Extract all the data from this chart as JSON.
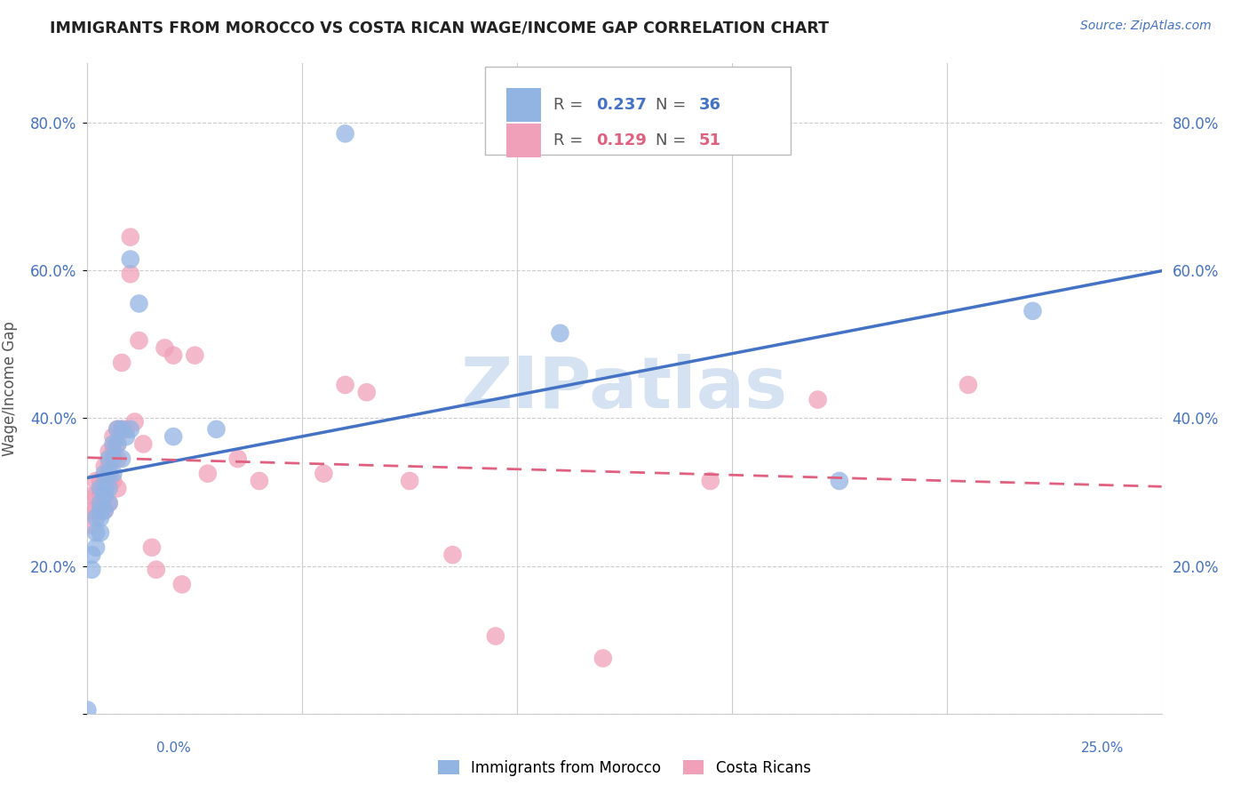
{
  "title": "IMMIGRANTS FROM MOROCCO VS COSTA RICAN WAGE/INCOME GAP CORRELATION CHART",
  "source": "Source: ZipAtlas.com",
  "ylabel": "Wage/Income Gap",
  "legend_blue_r": "0.237",
  "legend_blue_n": "36",
  "legend_pink_r": "0.129",
  "legend_pink_n": "51",
  "blue_scatter_x": [
    0.0,
    0.001,
    0.001,
    0.002,
    0.002,
    0.002,
    0.003,
    0.003,
    0.003,
    0.003,
    0.003,
    0.004,
    0.004,
    0.004,
    0.004,
    0.005,
    0.005,
    0.005,
    0.005,
    0.006,
    0.006,
    0.006,
    0.007,
    0.007,
    0.008,
    0.008,
    0.009,
    0.01,
    0.012,
    0.02,
    0.03,
    0.06,
    0.11,
    0.175,
    0.22,
    0.01
  ],
  "blue_scatter_y": [
    0.005,
    0.215,
    0.195,
    0.265,
    0.245,
    0.225,
    0.305,
    0.285,
    0.275,
    0.265,
    0.245,
    0.325,
    0.305,
    0.295,
    0.275,
    0.345,
    0.325,
    0.305,
    0.285,
    0.365,
    0.345,
    0.325,
    0.385,
    0.365,
    0.385,
    0.345,
    0.375,
    0.385,
    0.555,
    0.375,
    0.385,
    0.785,
    0.515,
    0.315,
    0.545,
    0.615
  ],
  "pink_scatter_x": [
    0.001,
    0.001,
    0.001,
    0.002,
    0.002,
    0.002,
    0.003,
    0.003,
    0.003,
    0.004,
    0.004,
    0.004,
    0.004,
    0.005,
    0.005,
    0.005,
    0.005,
    0.006,
    0.006,
    0.006,
    0.007,
    0.007,
    0.007,
    0.007,
    0.008,
    0.008,
    0.009,
    0.01,
    0.01,
    0.011,
    0.012,
    0.013,
    0.015,
    0.016,
    0.018,
    0.02,
    0.022,
    0.025,
    0.028,
    0.035,
    0.04,
    0.055,
    0.06,
    0.065,
    0.075,
    0.085,
    0.095,
    0.12,
    0.145,
    0.17,
    0.205
  ],
  "pink_scatter_y": [
    0.295,
    0.275,
    0.255,
    0.315,
    0.295,
    0.275,
    0.315,
    0.295,
    0.275,
    0.335,
    0.315,
    0.295,
    0.275,
    0.355,
    0.335,
    0.315,
    0.285,
    0.375,
    0.355,
    0.315,
    0.385,
    0.365,
    0.345,
    0.305,
    0.475,
    0.385,
    0.385,
    0.645,
    0.595,
    0.395,
    0.505,
    0.365,
    0.225,
    0.195,
    0.495,
    0.485,
    0.175,
    0.485,
    0.325,
    0.345,
    0.315,
    0.325,
    0.445,
    0.435,
    0.315,
    0.215,
    0.105,
    0.075,
    0.315,
    0.425,
    0.445
  ],
  "blue_color": "#92b4e3",
  "pink_color": "#f0a0b8",
  "blue_line_color": "#4472c4",
  "pink_line_color": "#e06080",
  "pink_line_dash": [
    6,
    4
  ],
  "background_color": "#ffffff",
  "grid_color": "#cccccc",
  "title_color": "#222222",
  "watermark_color": "#d0dff0",
  "xmin": 0.0,
  "xmax": 0.25,
  "ymin": 0.0,
  "ymax": 0.88,
  "xtick_positions": [
    0.0,
    0.05,
    0.1,
    0.15,
    0.2,
    0.25
  ],
  "ytick_positions": [
    0.0,
    0.2,
    0.4,
    0.6,
    0.8
  ],
  "ytick_labels_left": [
    "",
    "20.0%",
    "40.0%",
    "60.0%",
    "80.0%"
  ],
  "ytick_labels_right": [
    "",
    "20.0%",
    "40.0%",
    "60.0%",
    "80.0%"
  ]
}
